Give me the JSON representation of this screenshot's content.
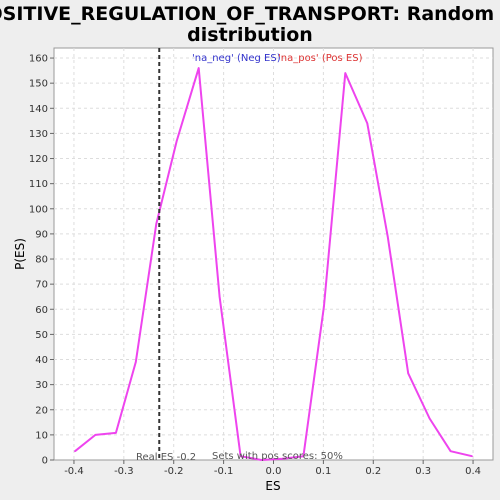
{
  "chart_data": {
    "type": "line",
    "title_line1": "POSITIVE_REGULATION_OF_TRANSPORT: Random ES",
    "title_line2": "distribution",
    "xlabel": "ES",
    "ylabel": "P(ES)",
    "xlim": [
      -0.44,
      0.44
    ],
    "ylim": [
      0,
      164
    ],
    "x_ticks": [
      -0.4,
      -0.3,
      -0.2,
      -0.1,
      0.0,
      0.1,
      0.2,
      0.3,
      0.4
    ],
    "x_tick_labels": [
      "-0.4",
      "-0.3",
      "-0.2",
      "-0.1",
      "0.0",
      "0.1",
      "0.2",
      "0.3",
      "0.4"
    ],
    "y_ticks": [
      0,
      10,
      20,
      30,
      40,
      50,
      60,
      70,
      80,
      90,
      100,
      110,
      120,
      130,
      140,
      150,
      160
    ],
    "y_tick_labels": [
      "0",
      "10",
      "20",
      "30",
      "40",
      "50",
      "60",
      "70",
      "80",
      "90",
      "100",
      "110",
      "120",
      "130",
      "140",
      "150",
      "160"
    ],
    "grid": true,
    "series": [
      {
        "color": "#ee44ee",
        "x": [
          -0.398,
          -0.357,
          -0.316,
          -0.276,
          -0.235,
          -0.194,
          -0.15,
          -0.108,
          -0.066,
          -0.024,
          0.018,
          0.06,
          0.101,
          0.144,
          0.188,
          0.229,
          0.27,
          0.313,
          0.355,
          0.398
        ],
        "y": [
          3.5,
          10,
          10.8,
          39,
          94,
          127,
          156,
          65,
          1.5,
          0,
          0.5,
          1.5,
          61,
          154,
          134,
          89,
          34.5,
          16.5,
          3.5,
          1.5
        ]
      }
    ],
    "vline": {
      "x": -0.229,
      "style": "dashed",
      "color": "#333333"
    },
    "legend": {
      "placement": "top",
      "entries": [
        {
          "label": "'na_neg' (Neg ES)",
          "color": "#3333cc"
        },
        {
          "label": "'na_pos' (Pos ES)",
          "color": "#dd3333"
        }
      ]
    },
    "annotations": {
      "real_es": "Real ES -0.2",
      "pos_scores": "Sets with pos scores: 50%"
    }
  }
}
